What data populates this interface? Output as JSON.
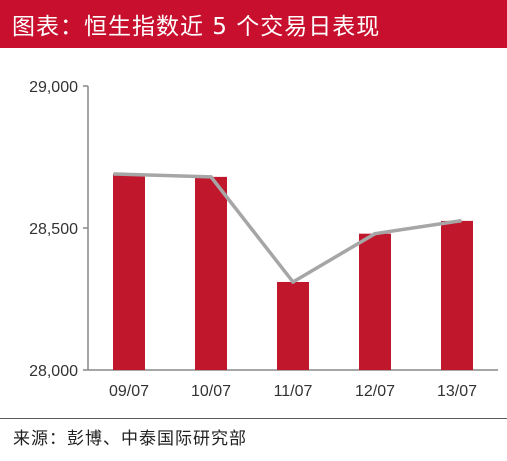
{
  "header": {
    "title": "图表：恒生指数近 5 个交易日表现"
  },
  "footer": {
    "source": "来源：彭博、中泰国际研究部"
  },
  "colors": {
    "title_background": "#c8102e",
    "bar": "#c0172d",
    "line": "#a6a6a6"
  },
  "chart_data": {
    "type": "bar",
    "categories": [
      "09/07",
      "10/07",
      "11/07",
      "12/07",
      "13/07"
    ],
    "series": [
      {
        "type": "bar",
        "values": [
          28690,
          28680,
          28310,
          28480,
          28525
        ]
      },
      {
        "type": "line",
        "values": [
          28690,
          28680,
          28310,
          28480,
          28525
        ]
      }
    ],
    "y_ticks": [
      "28,000",
      "28,500",
      "29,000"
    ],
    "y_tick_values": [
      28000,
      28500,
      29000
    ],
    "ylim": [
      28000,
      29000
    ],
    "grid": false,
    "legend": "none"
  }
}
